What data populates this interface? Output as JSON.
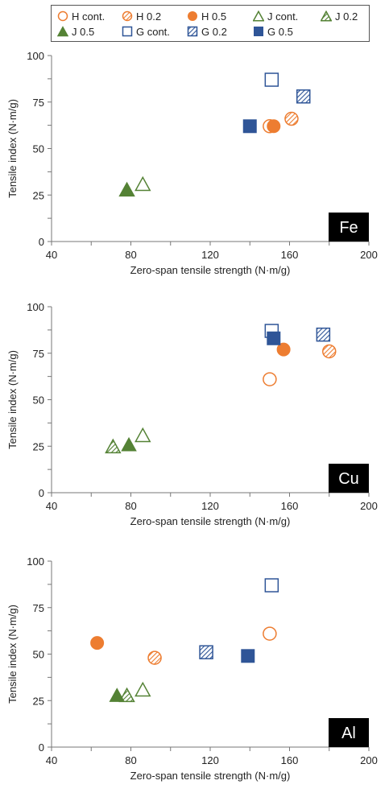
{
  "legend": {
    "items": [
      {
        "label": "H cont.",
        "series": "H cont."
      },
      {
        "label": "H 0.2",
        "series": "H 0.2"
      },
      {
        "label": "H 0.5",
        "series": "H 0.5"
      },
      {
        "label": "J cont.",
        "series": "J cont."
      },
      {
        "label": "J 0.2",
        "series": "J 0.2"
      },
      {
        "label": "J 0.5",
        "series": "J 0.5"
      },
      {
        "label": "G cont.",
        "series": "G cont."
      },
      {
        "label": "G 0.2",
        "series": "G 0.2"
      },
      {
        "label": "G 0.5",
        "series": "G 0.5"
      }
    ]
  },
  "series_styles": {
    "H cont.": {
      "marker": "circle",
      "fill": "open",
      "color": "#ED7D31"
    },
    "H 0.2": {
      "marker": "circle",
      "fill": "hatched",
      "color": "#ED7D31"
    },
    "H 0.5": {
      "marker": "circle",
      "fill": "solid",
      "color": "#ED7D31"
    },
    "J cont.": {
      "marker": "triangle",
      "fill": "open",
      "color": "#548235"
    },
    "J 0.2": {
      "marker": "triangle",
      "fill": "hatched",
      "color": "#548235"
    },
    "J 0.5": {
      "marker": "triangle",
      "fill": "solid",
      "color": "#548235"
    },
    "G cont.": {
      "marker": "square",
      "fill": "open",
      "color": "#2F5597"
    },
    "G 0.2": {
      "marker": "square",
      "fill": "hatched",
      "color": "#2F5597"
    },
    "G 0.5": {
      "marker": "square",
      "fill": "solid",
      "color": "#2F5597"
    }
  },
  "chart_data": [
    {
      "type": "scatter",
      "panel_label": "Fe",
      "xlabel": "Zero-span tensile strength (N·m/g)",
      "ylabel": "Tensile index  (N·m/g)",
      "xlim": [
        40,
        200
      ],
      "ylim": [
        0,
        100
      ],
      "xticks": [
        "40",
        "80",
        "120",
        "160",
        "200"
      ],
      "yticks": [
        "0",
        "25",
        "50",
        "75",
        "100"
      ],
      "grid": false,
      "series": [
        {
          "name": "H cont.",
          "points": [
            [
              150,
              62
            ]
          ]
        },
        {
          "name": "H 0.2",
          "points": [
            [
              161,
              66
            ]
          ]
        },
        {
          "name": "H 0.5",
          "points": [
            [
              152,
              62
            ]
          ]
        },
        {
          "name": "J cont.",
          "points": [
            [
              86,
              31
            ]
          ]
        },
        {
          "name": "J 0.2",
          "points": [
            [
              78,
              28
            ]
          ]
        },
        {
          "name": "J 0.5",
          "points": [
            [
              78,
              28
            ]
          ]
        },
        {
          "name": "G cont.",
          "points": [
            [
              151,
              87
            ]
          ]
        },
        {
          "name": "G 0.2",
          "points": [
            [
              167,
              78
            ]
          ]
        },
        {
          "name": "G 0.5",
          "points": [
            [
              140,
              62
            ]
          ]
        }
      ]
    },
    {
      "type": "scatter",
      "panel_label": "Cu",
      "xlabel": "Zero-span tensile strength (N·m/g)",
      "ylabel": "Tensile index  (N·m/g)",
      "xlim": [
        40,
        200
      ],
      "ylim": [
        0,
        100
      ],
      "xticks": [
        "40",
        "80",
        "120",
        "160",
        "200"
      ],
      "yticks": [
        "0",
        "25",
        "50",
        "75",
        "100"
      ],
      "grid": false,
      "series": [
        {
          "name": "H cont.",
          "points": [
            [
              150,
              61
            ]
          ]
        },
        {
          "name": "H 0.2",
          "points": [
            [
              180,
              76
            ]
          ]
        },
        {
          "name": "H 0.5",
          "points": [
            [
              157,
              77
            ]
          ]
        },
        {
          "name": "J cont.",
          "points": [
            [
              86,
              31
            ]
          ]
        },
        {
          "name": "J 0.2",
          "points": [
            [
              71,
              25
            ]
          ]
        },
        {
          "name": "J 0.5",
          "points": [
            [
              79,
              26
            ]
          ]
        },
        {
          "name": "G cont.",
          "points": [
            [
              151,
              87
            ]
          ]
        },
        {
          "name": "G 0.2",
          "points": [
            [
              177,
              85
            ]
          ]
        },
        {
          "name": "G 0.5",
          "points": [
            [
              152,
              83
            ]
          ]
        }
      ]
    },
    {
      "type": "scatter",
      "panel_label": "Al",
      "xlabel": "Zero-span tensile strength (N·m/g)",
      "ylabel": "Tensile index  (N·m/g)",
      "xlim": [
        40,
        200
      ],
      "ylim": [
        0,
        100
      ],
      "xticks": [
        "40",
        "80",
        "120",
        "160",
        "200"
      ],
      "yticks": [
        "0",
        "25",
        "50",
        "75",
        "100"
      ],
      "grid": false,
      "series": [
        {
          "name": "H cont.",
          "points": [
            [
              150,
              61
            ]
          ]
        },
        {
          "name": "H 0.2",
          "points": [
            [
              92,
              48
            ]
          ]
        },
        {
          "name": "H 0.5",
          "points": [
            [
              63,
              56
            ]
          ]
        },
        {
          "name": "J cont.",
          "points": [
            [
              86,
              31
            ]
          ]
        },
        {
          "name": "J 0.2",
          "points": [
            [
              78,
              28
            ]
          ]
        },
        {
          "name": "J 0.5",
          "points": [
            [
              73,
              28
            ]
          ]
        },
        {
          "name": "G cont.",
          "points": [
            [
              151,
              87
            ]
          ]
        },
        {
          "name": "G 0.2",
          "points": [
            [
              118,
              51
            ]
          ]
        },
        {
          "name": "G 0.5",
          "points": [
            [
              139,
              49
            ]
          ]
        }
      ]
    }
  ]
}
